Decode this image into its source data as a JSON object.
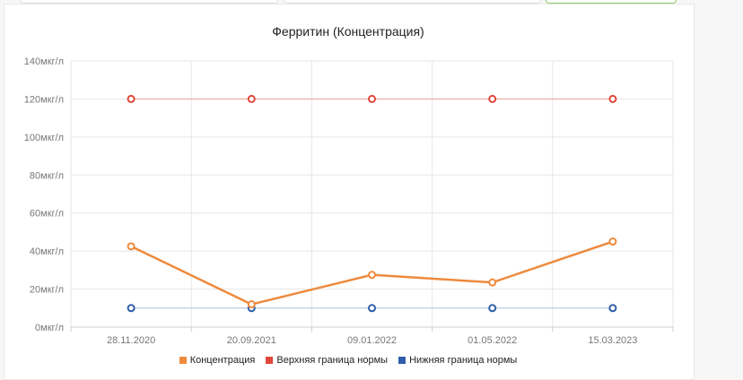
{
  "chart_data": {
    "type": "line",
    "title": "Ферритин (Концентрация)",
    "categories": [
      "28.11.2020",
      "20.09.2021",
      "09.01.2022",
      "01.05.2022",
      "15.03.2023"
    ],
    "ylim": [
      0,
      140
    ],
    "yticks": [
      "0мкг/л",
      "20мкг/л",
      "40мкг/л",
      "60мкг/л",
      "80мкг/л",
      "100мкг/л",
      "120мкг/л",
      "140мкг/л"
    ],
    "ytick_values": [
      0,
      20,
      40,
      60,
      80,
      100,
      120,
      140
    ],
    "grid": true,
    "legend_position": "bottom",
    "series": [
      {
        "name": "Концентрация",
        "values": [
          42.5,
          12,
          27.5,
          23.5,
          45
        ],
        "color": "#ee8a3d"
      },
      {
        "name": "Верхняя граница нормы",
        "values": [
          120,
          120,
          120,
          120,
          120
        ],
        "color": "#e0463a"
      },
      {
        "name": "Нижняя граница нормы",
        "values": [
          10,
          10,
          10,
          10,
          10
        ],
        "color": "#2f5faa"
      }
    ]
  }
}
